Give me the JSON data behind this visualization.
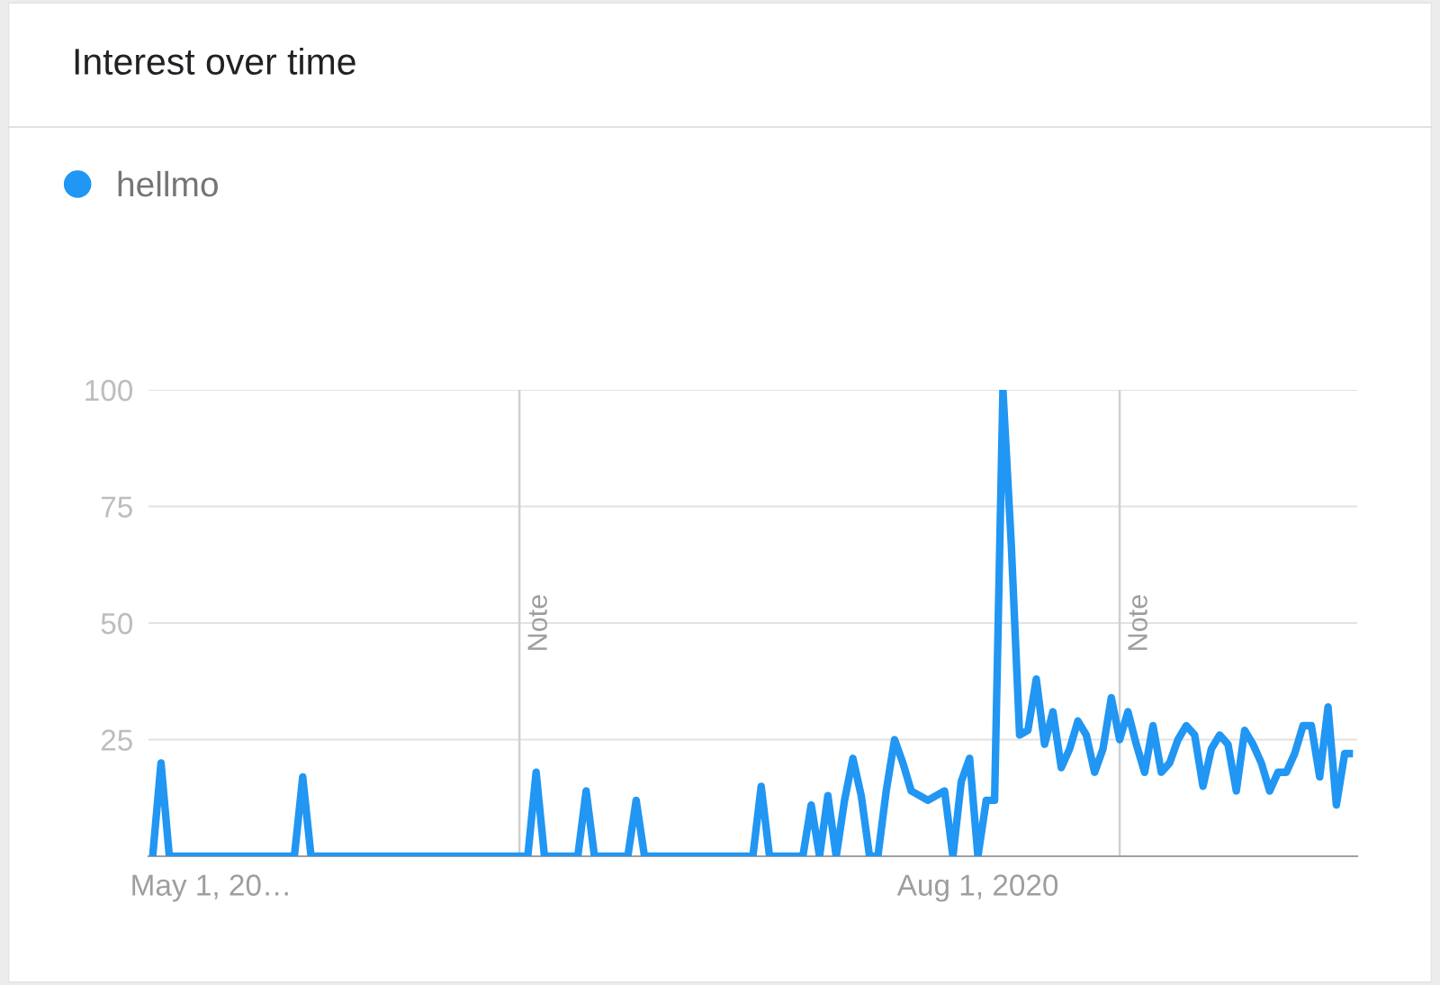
{
  "chart_data": {
    "type": "line",
    "title": "Interest over time",
    "x": [
      "2020-04-24",
      "2020-04-25",
      "2020-04-26",
      "2020-04-27",
      "2020-04-28",
      "2020-04-29",
      "2020-04-30",
      "2020-05-01",
      "2020-05-02",
      "2020-05-03",
      "2020-05-04",
      "2020-05-05",
      "2020-05-06",
      "2020-05-07",
      "2020-05-08",
      "2020-05-09",
      "2020-05-10",
      "2020-05-11",
      "2020-05-12",
      "2020-05-13",
      "2020-05-14",
      "2020-05-15",
      "2020-05-16",
      "2020-05-17",
      "2020-05-18",
      "2020-05-19",
      "2020-05-20",
      "2020-05-21",
      "2020-05-22",
      "2020-05-23",
      "2020-05-24",
      "2020-05-25",
      "2020-05-26",
      "2020-05-27",
      "2020-05-28",
      "2020-05-29",
      "2020-05-30",
      "2020-05-31",
      "2020-06-01",
      "2020-06-02",
      "2020-06-03",
      "2020-06-04",
      "2020-06-05",
      "2020-06-06",
      "2020-06-07",
      "2020-06-08",
      "2020-06-09",
      "2020-06-10",
      "2020-06-11",
      "2020-06-12",
      "2020-06-13",
      "2020-06-14",
      "2020-06-15",
      "2020-06-16",
      "2020-06-17",
      "2020-06-18",
      "2020-06-19",
      "2020-06-20",
      "2020-06-21",
      "2020-06-22",
      "2020-06-23",
      "2020-06-24",
      "2020-06-25",
      "2020-06-26",
      "2020-06-27",
      "2020-06-28",
      "2020-06-29",
      "2020-06-30",
      "2020-07-01",
      "2020-07-02",
      "2020-07-03",
      "2020-07-04",
      "2020-07-05",
      "2020-07-06",
      "2020-07-07",
      "2020-07-08",
      "2020-07-09",
      "2020-07-10",
      "2020-07-11",
      "2020-07-12",
      "2020-07-13",
      "2020-07-14",
      "2020-07-15",
      "2020-07-16",
      "2020-07-17",
      "2020-07-18",
      "2020-07-19",
      "2020-07-20",
      "2020-07-21",
      "2020-07-22",
      "2020-07-23",
      "2020-07-24",
      "2020-07-25",
      "2020-07-26",
      "2020-07-27",
      "2020-07-28",
      "2020-07-29",
      "2020-07-30",
      "2020-07-31",
      "2020-08-01",
      "2020-08-02",
      "2020-08-03",
      "2020-08-04",
      "2020-08-05",
      "2020-08-06",
      "2020-08-07",
      "2020-08-08",
      "2020-08-09",
      "2020-08-10",
      "2020-08-11",
      "2020-08-12",
      "2020-08-13",
      "2020-08-14",
      "2020-08-15",
      "2020-08-16",
      "2020-08-17",
      "2020-08-18",
      "2020-08-19",
      "2020-08-20",
      "2020-08-21",
      "2020-08-22",
      "2020-08-23",
      "2020-08-24",
      "2020-08-25",
      "2020-08-26",
      "2020-08-27",
      "2020-08-28",
      "2020-08-29",
      "2020-08-30",
      "2020-08-31",
      "2020-09-01",
      "2020-09-02",
      "2020-09-03",
      "2020-09-04",
      "2020-09-05",
      "2020-09-06",
      "2020-09-07",
      "2020-09-08",
      "2020-09-09",
      "2020-09-10",
      "2020-09-11",
      "2020-09-12",
      "2020-09-13",
      "2020-09-14",
      "2020-09-15"
    ],
    "series": [
      {
        "name": "hellmo",
        "color": "#2196f3",
        "values": [
          0,
          20,
          0,
          0,
          0,
          0,
          0,
          0,
          0,
          0,
          0,
          0,
          0,
          0,
          0,
          0,
          0,
          0,
          17,
          0,
          0,
          0,
          0,
          0,
          0,
          0,
          0,
          0,
          0,
          0,
          0,
          0,
          0,
          0,
          0,
          0,
          0,
          0,
          0,
          0,
          0,
          0,
          0,
          0,
          0,
          0,
          18,
          0,
          0,
          0,
          0,
          0,
          14,
          0,
          0,
          0,
          0,
          0,
          12,
          0,
          0,
          0,
          0,
          0,
          0,
          0,
          0,
          0,
          0,
          0,
          0,
          0,
          0,
          15,
          0,
          0,
          0,
          0,
          0,
          11,
          0,
          13,
          0,
          12,
          21,
          13,
          0,
          0,
          14,
          25,
          20,
          14,
          13,
          12,
          13,
          14,
          0,
          16,
          21,
          0,
          12,
          12,
          100,
          67,
          26,
          27,
          38,
          24,
          31,
          19,
          23,
          29,
          26,
          18,
          23,
          34,
          25,
          31,
          24,
          18,
          28,
          18,
          20,
          25,
          28,
          26,
          15,
          23,
          26,
          24,
          14,
          27,
          24,
          20,
          14,
          18,
          18,
          22,
          28,
          28,
          17,
          32,
          11,
          22,
          22
        ]
      }
    ],
    "xlim": [
      "2020-04-23T12:00",
      "2020-09-15T12:00"
    ],
    "xticks": [
      {
        "value": "2020-05-01",
        "label": "May 1, 20…"
      },
      {
        "value": "2020-08-01",
        "label": "Aug 1, 2020"
      }
    ],
    "ylim": [
      0,
      100
    ],
    "yticks": [
      25,
      50,
      75,
      100
    ],
    "grid": "y",
    "legend": "top left",
    "marker": "none",
    "line_style": "solid",
    "ref_lines": [
      {
        "axis": "x",
        "value": "2020-06-07",
        "label": "Note",
        "color": "#d0d0d0"
      },
      {
        "axis": "x",
        "value": "2020-08-18",
        "label": "Note",
        "color": "#d0d0d0"
      }
    ]
  }
}
